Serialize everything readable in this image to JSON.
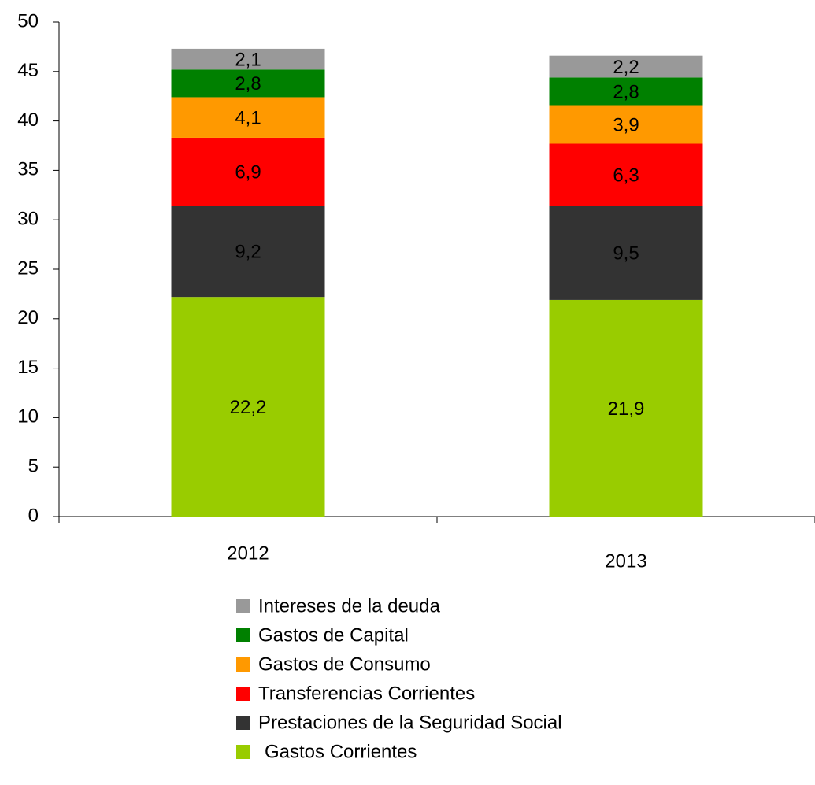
{
  "chart_data": {
    "type": "stacked_bar",
    "categories": [
      "2012",
      "2013"
    ],
    "series": [
      {
        "name": "Gastos Corrientes",
        "color": "#99cc00",
        "values": [
          22.2,
          21.9
        ],
        "value_labels": [
          "22,2",
          "21,9"
        ]
      },
      {
        "name": "Prestaciones de la Seguridad Social",
        "color": "#333333",
        "values": [
          9.2,
          9.5
        ],
        "value_labels": [
          "9,2",
          "9,5"
        ]
      },
      {
        "name": "Transferencias Corrientes",
        "color": "#ff0000",
        "values": [
          6.9,
          6.3
        ],
        "value_labels": [
          "6,9",
          "6,3"
        ]
      },
      {
        "name": "Gastos de Consumo",
        "color": "#ff9900",
        "values": [
          4.1,
          3.9
        ],
        "value_labels": [
          "4,1",
          "3,9"
        ]
      },
      {
        "name": "Gastos de Capital",
        "color": "#008000",
        "values": [
          2.8,
          2.8
        ],
        "value_labels": [
          "2,8",
          "2,8"
        ]
      },
      {
        "name": "Intereses de la deuda",
        "color": "#999999",
        "values": [
          2.1,
          2.2
        ],
        "value_labels": [
          "2,1",
          "2,2"
        ]
      }
    ],
    "ylim": [
      0,
      50
    ],
    "yticks": [
      0,
      5,
      10,
      15,
      20,
      25,
      30,
      35,
      40,
      45,
      50
    ],
    "legend": "bottom"
  }
}
